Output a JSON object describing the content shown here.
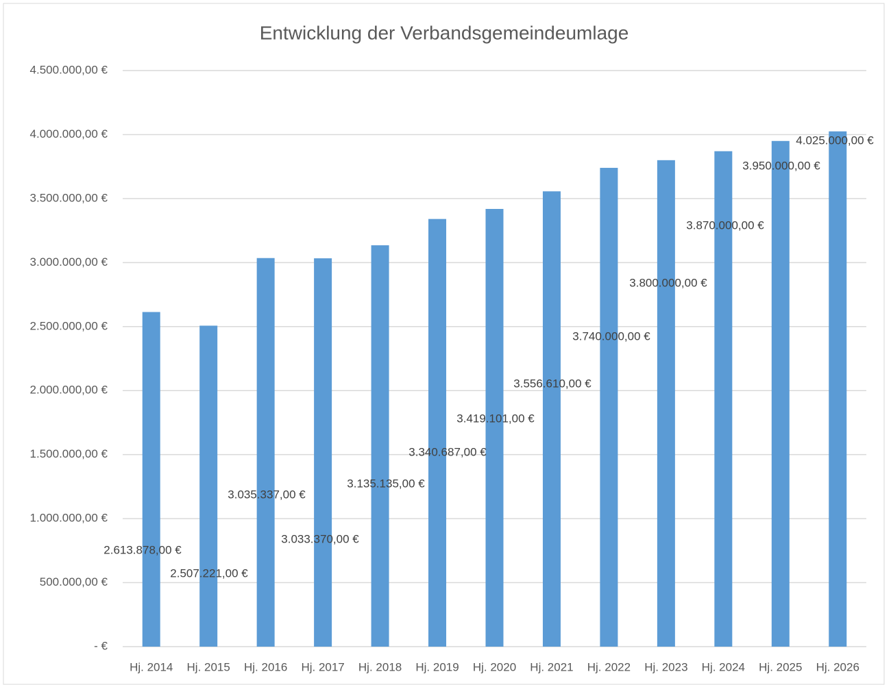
{
  "chart_data": {
    "type": "bar",
    "title": "Entwicklung der Verbandsgemeindeumlage",
    "categories": [
      "Hj. 2014",
      "Hj. 2015",
      "Hj. 2016",
      "Hj. 2017",
      "Hj. 2018",
      "Hj. 2019",
      "Hj. 2020",
      "Hj. 2021",
      "Hj. 2022",
      "Hj. 2023",
      "Hj. 2024",
      "Hj. 2025",
      "Hj. 2026"
    ],
    "values": [
      2613878,
      2507221,
      3035337,
      3033370,
      3135135,
      3340687,
      3419101,
      3556610,
      3740000,
      3800000,
      3870000,
      3950000,
      4025000
    ],
    "value_labels": [
      "2.613.878,00 €",
      "2.507.221,00 €",
      "3.035.337,00 €",
      "3.033.370,00 €",
      "3.135.135,00 €",
      "3.340.687,00 €",
      "3.419.101,00 €",
      "3.556.610,00 €",
      "3.740.000,00 €",
      "3.800.000,00 €",
      "3.870.000,00 €",
      "3.950.000,00 €",
      "4.025.000,00 €"
    ],
    "color": "#5b9bd5",
    "ylim": [
      0,
      4500000
    ],
    "yticks": [
      {
        "value": 0,
        "label": "-  €"
      },
      {
        "value": 500000,
        "label": "500.000,00 €"
      },
      {
        "value": 1000000,
        "label": "1.000.000,00 €"
      },
      {
        "value": 1500000,
        "label": "1.500.000,00 €"
      },
      {
        "value": 2000000,
        "label": "2.000.000,00 €"
      },
      {
        "value": 2500000,
        "label": "2.500.000,00 €"
      },
      {
        "value": 3000000,
        "label": "3.000.000,00 €"
      },
      {
        "value": 3500000,
        "label": "3.500.000,00 €"
      },
      {
        "value": 4000000,
        "label": "4.000.000,00 €"
      },
      {
        "value": 4500000,
        "label": "4.500.000,00 €"
      }
    ],
    "grid": true
  }
}
